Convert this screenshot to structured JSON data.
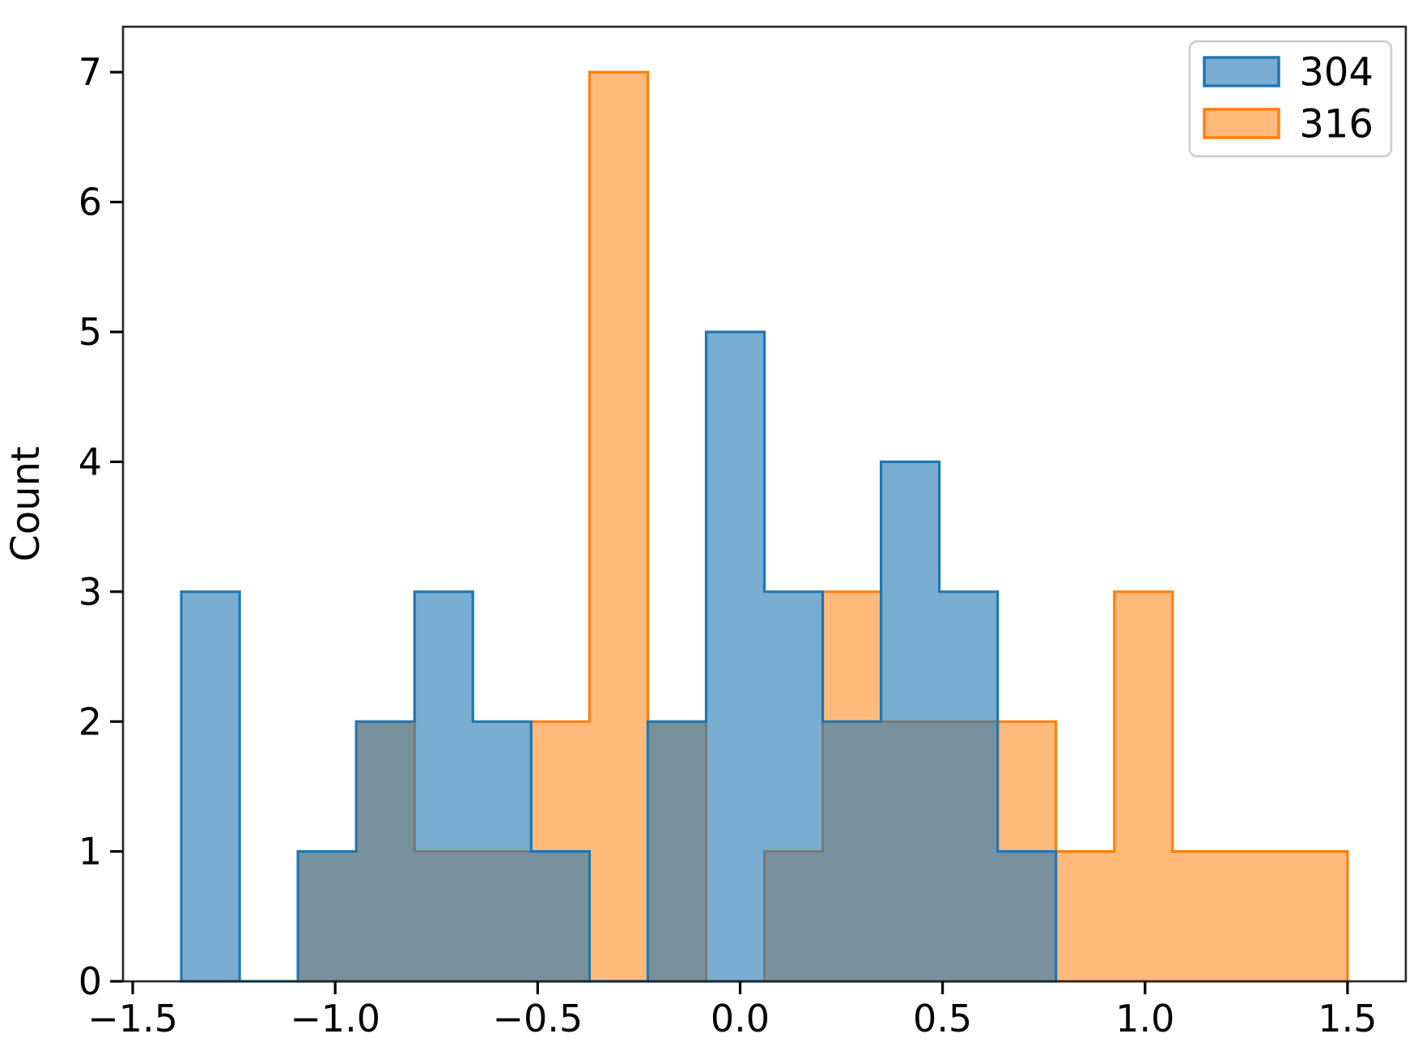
{
  "figure": {
    "background": "#ffffff",
    "axis_color": "#000000",
    "spine_color": "#262626"
  },
  "chart_data": {
    "type": "histogram",
    "element": "step",
    "title": "",
    "xlabel": "",
    "ylabel": "Count",
    "grid": false,
    "xlim": [
      -1.524,
      1.644
    ],
    "ylim": [
      0,
      7.35
    ],
    "bin_edges": [
      -1.38,
      -1.236,
      -1.092,
      -0.948,
      -0.804,
      -0.66,
      -0.516,
      -0.372,
      -0.228,
      -0.084,
      0.06,
      0.204,
      0.348,
      0.492,
      0.636,
      0.78,
      0.924,
      1.068,
      1.212,
      1.356,
      1.5
    ],
    "series": [
      {
        "name": "316",
        "edge_color": "#ff7f0e",
        "fill_alpha": 0.55,
        "draw_order": 1,
        "counts": [
          0,
          0,
          1,
          2,
          1,
          1,
          2,
          7,
          2,
          0,
          1,
          3,
          2,
          2,
          2,
          1,
          3,
          1,
          1,
          1
        ]
      },
      {
        "name": "304",
        "edge_color": "#1f77b4",
        "fill_alpha": 0.6,
        "draw_order": 2,
        "counts": [
          3,
          0,
          1,
          2,
          3,
          2,
          1,
          0,
          2,
          5,
          3,
          2,
          4,
          3,
          1,
          0,
          0,
          0,
          0,
          0
        ]
      }
    ],
    "legend": {
      "position": "upper right",
      "border_color": "#cccccc",
      "background": "#ffffff",
      "entries": [
        {
          "label": "304",
          "color": "#1f77b4",
          "fill_alpha": 0.6
        },
        {
          "label": "316",
          "color": "#ff7f0e",
          "fill_alpha": 0.55
        }
      ]
    },
    "xticks": {
      "values": [
        -1.5,
        -1.0,
        -0.5,
        0.0,
        0.5,
        1.0,
        1.5
      ],
      "labels": [
        "−1.5",
        "−1.0",
        "−0.5",
        "0.0",
        "0.5",
        "1.0",
        "1.5"
      ]
    },
    "yticks": {
      "values": [
        0,
        1,
        2,
        3,
        4,
        5,
        6,
        7
      ],
      "labels": [
        "0",
        "1",
        "2",
        "3",
        "4",
        "5",
        "6",
        "7"
      ]
    }
  }
}
